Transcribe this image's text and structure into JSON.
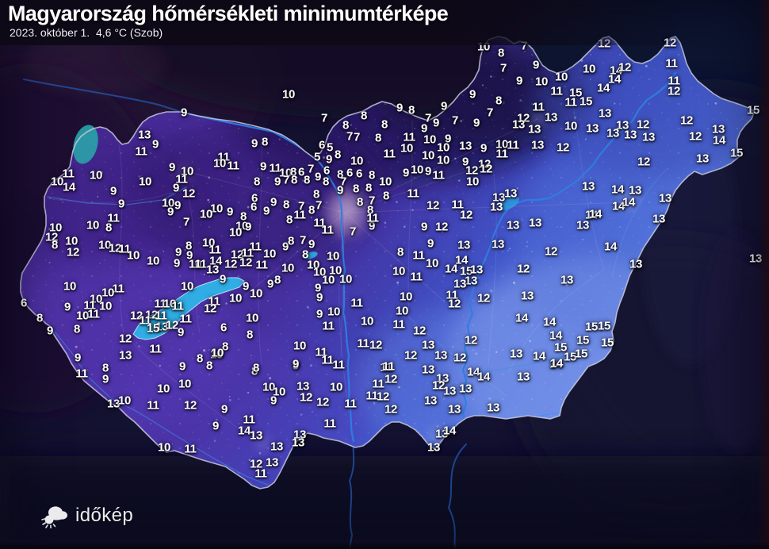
{
  "header": {
    "title": "Magyarország hőmérsékleti minimumtérképe",
    "subtitle": "2023. október 1.  4,6 °C (Szob)"
  },
  "branding": {
    "logo_text": "időkép",
    "logo_icon": "sun-cloud-icon"
  },
  "map": {
    "unit": "°C",
    "colors": {
      "label": "#ffffff",
      "title_bar": "#0d0916",
      "background": "#151233",
      "land_west": "#45298f",
      "land_mid": "#4140b2",
      "land_east": "#5d7ede",
      "land_se_bright": "#87a4f0",
      "north_dark": "#190b40",
      "lake": "#2eb4e8",
      "river": "#2f7de0",
      "border": "#c7c9de"
    }
  },
  "stations": [
    [
      232,
      142,
      9
    ],
    [
      182,
      170,
      13
    ],
    [
      196,
      182,
      9
    ],
    [
      178,
      191,
      11
    ],
    [
      217,
      211,
      9
    ],
    [
      236,
      216,
      10
    ],
    [
      229,
      226,
      11
    ],
    [
      222,
      237,
      9
    ],
    [
      238,
      244,
      12
    ],
    [
      86,
      219,
      11
    ],
    [
      72,
      229,
      10
    ],
    [
      87,
      236,
      14
    ],
    [
      121,
      221,
      10
    ],
    [
      183,
      229,
      10
    ],
    [
      143,
      241,
      9
    ],
    [
      153,
      257,
      9
    ],
    [
      212,
      256,
      10
    ],
    [
      224,
      259,
      9
    ],
    [
      215,
      267,
      9
    ],
    [
      235,
      280,
      7
    ],
    [
      143,
      275,
      11
    ],
    [
      117,
      284,
      10
    ],
    [
      137,
      287,
      8
    ],
    [
      70,
      287,
      10
    ],
    [
      65,
      299,
      12
    ],
    [
      69,
      309,
      8
    ],
    [
      90,
      304,
      10
    ],
    [
      92,
      318,
      12
    ],
    [
      132,
      309,
      10
    ],
    [
      145,
      313,
      12
    ],
    [
      157,
      314,
      11
    ],
    [
      168,
      322,
      10
    ],
    [
      193,
      329,
      10
    ],
    [
      225,
      318,
      9
    ],
    [
      238,
      310,
      8
    ],
    [
      239,
      322,
      9
    ],
    [
      223,
      332,
      9
    ],
    [
      246,
      333,
      10
    ],
    [
      88,
      361,
      10
    ],
    [
      149,
      364,
      11
    ],
    [
      136,
      369,
      10
    ],
    [
      121,
      377,
      10
    ],
    [
      236,
      361,
      10
    ],
    [
      30,
      382,
      6
    ],
    [
      85,
      387,
      9
    ],
    [
      113,
      385,
      11
    ],
    [
      133,
      386,
      10
    ],
    [
      50,
      401,
      8
    ],
    [
      104,
      398,
      10
    ],
    [
      118,
      396,
      11
    ],
    [
      63,
      417,
      9
    ],
    [
      97,
      415,
      8
    ],
    [
      98,
      451,
      9
    ],
    [
      202,
      383,
      11
    ],
    [
      214,
      383,
      10
    ],
    [
      224,
      386,
      11
    ],
    [
      172,
      398,
      12
    ],
    [
      191,
      397,
      12
    ],
    [
      203,
      398,
      11
    ],
    [
      183,
      404,
      11
    ],
    [
      204,
      412,
      13
    ],
    [
      217,
      410,
      12
    ],
    [
      234,
      402,
      11
    ],
    [
      193,
      414,
      15
    ],
    [
      228,
      419,
      9
    ],
    [
      158,
      427,
      12
    ],
    [
      196,
      440,
      11
    ],
    [
      158,
      448,
      13
    ],
    [
      103,
      471,
      11
    ],
    [
      133,
      464,
      8
    ],
    [
      133,
      478,
      9
    ],
    [
      230,
      462,
      9
    ],
    [
      206,
      490,
      10
    ],
    [
      233,
      484,
      10
    ],
    [
      143,
      509,
      13
    ],
    [
      157,
      505,
      10
    ],
    [
      193,
      511,
      11
    ],
    [
      240,
      511,
      12
    ],
    [
      207,
      564,
      10
    ],
    [
      240,
      566,
      11
    ],
    [
      273,
      447,
      10
    ],
    [
      252,
      452,
      8
    ],
    [
      264,
      461,
      8
    ],
    [
      321,
      468,
      8
    ],
    [
      373,
      461,
      9
    ],
    [
      339,
      488,
      10
    ],
    [
      352,
      494,
      10
    ],
    [
      345,
      505,
      9
    ],
    [
      382,
      487,
      13
    ],
    [
      386,
      501,
      12
    ],
    [
      407,
      507,
      12
    ],
    [
      424,
      488,
      10
    ],
    [
      442,
      509,
      11
    ],
    [
      487,
      463,
      11
    ],
    [
      477,
      484,
      11
    ],
    [
      493,
      478,
      12
    ],
    [
      469,
      499,
      11
    ],
    [
      483,
      500,
      12
    ],
    [
      493,
      516,
      12
    ],
    [
      283,
      516,
      9
    ],
    [
      272,
      537,
      9
    ],
    [
      314,
      529,
      11
    ],
    [
      308,
      543,
      14
    ],
    [
      323,
      549,
      13
    ],
    [
      349,
      563,
      13
    ],
    [
      378,
      548,
      13
    ],
    [
      376,
      558,
      13
    ],
    [
      416,
      534,
      11
    ],
    [
      323,
      585,
      12
    ],
    [
      343,
      583,
      13
    ],
    [
      329,
      597,
      11
    ],
    [
      263,
      306,
      10
    ],
    [
      271,
      315,
      11
    ],
    [
      322,
      311,
      11
    ],
    [
      299,
      321,
      12
    ],
    [
      312,
      319,
      11
    ],
    [
      340,
      320,
      10
    ],
    [
      360,
      311,
      9
    ],
    [
      367,
      304,
      8
    ],
    [
      382,
      303,
      7
    ],
    [
      393,
      308,
      9
    ],
    [
      385,
      321,
      8
    ],
    [
      420,
      323,
      10
    ],
    [
      272,
      329,
      14
    ],
    [
      253,
      333,
      11
    ],
    [
      291,
      333,
      12
    ],
    [
      310,
      331,
      12
    ],
    [
      330,
      334,
      11
    ],
    [
      268,
      340,
      13
    ],
    [
      363,
      338,
      10
    ],
    [
      395,
      334,
      10
    ],
    [
      403,
      343,
      10
    ],
    [
      423,
      341,
      10
    ],
    [
      281,
      352,
      9
    ],
    [
      414,
      353,
      10
    ],
    [
      436,
      352,
      10
    ],
    [
      310,
      361,
      9
    ],
    [
      341,
      358,
      9
    ],
    [
      350,
      353,
      8
    ],
    [
      401,
      363,
      9
    ],
    [
      323,
      370,
      10
    ],
    [
      297,
      376,
      10
    ],
    [
      403,
      375,
      9
    ],
    [
      270,
      380,
      11
    ],
    [
      265,
      389,
      12
    ],
    [
      450,
      382,
      11
    ],
    [
      403,
      396,
      9
    ],
    [
      421,
      393,
      10
    ],
    [
      414,
      411,
      11
    ],
    [
      463,
      405,
      10
    ],
    [
      318,
      401,
      10
    ],
    [
      282,
      413,
      6
    ],
    [
      315,
      422,
      8
    ],
    [
      284,
      437,
      8
    ],
    [
      274,
      445,
      10
    ],
    [
      378,
      436,
      10
    ],
    [
      405,
      444,
      11
    ],
    [
      413,
      454,
      11
    ],
    [
      427,
      460,
      11
    ],
    [
      373,
      459,
      9
    ],
    [
      458,
      433,
      11
    ],
    [
      474,
      435,
      12
    ],
    [
      490,
      462,
      11
    ],
    [
      323,
      464,
      8
    ],
    [
      364,
      119,
      10
    ],
    [
      409,
      149,
      7
    ],
    [
      459,
      146,
      8
    ],
    [
      436,
      158,
      8
    ],
    [
      485,
      157,
      8
    ],
    [
      441,
      172,
      7
    ],
    [
      450,
      173,
      7
    ],
    [
      477,
      174,
      8
    ],
    [
      321,
      181,
      9
    ],
    [
      334,
      179,
      8
    ],
    [
      406,
      183,
      6
    ],
    [
      416,
      186,
      5
    ],
    [
      400,
      198,
      5
    ],
    [
      415,
      201,
      9
    ],
    [
      426,
      195,
      8
    ],
    [
      282,
      198,
      11
    ],
    [
      277,
      206,
      10
    ],
    [
      294,
      209,
      11
    ],
    [
      450,
      203,
      10
    ],
    [
      491,
      194,
      11
    ],
    [
      332,
      210,
      9
    ],
    [
      347,
      212,
      11
    ],
    [
      360,
      218,
      10
    ],
    [
      370,
      217,
      8
    ],
    [
      380,
      217,
      6
    ],
    [
      392,
      213,
      7
    ],
    [
      412,
      215,
      6
    ],
    [
      429,
      220,
      8
    ],
    [
      441,
      218,
      6
    ],
    [
      453,
      219,
      6
    ],
    [
      469,
      221,
      8
    ],
    [
      350,
      229,
      9
    ],
    [
      361,
      227,
      7
    ],
    [
      371,
      227,
      8
    ],
    [
      387,
      227,
      8
    ],
    [
      401,
      223,
      9
    ],
    [
      411,
      229,
      8
    ],
    [
      324,
      229,
      8
    ],
    [
      433,
      229,
      7
    ],
    [
      486,
      229,
      10
    ],
    [
      429,
      240,
      9
    ],
    [
      449,
      238,
      8
    ],
    [
      465,
      237,
      8
    ],
    [
      399,
      245,
      8
    ],
    [
      321,
      250,
      6
    ],
    [
      320,
      261,
      6
    ],
    [
      345,
      255,
      9
    ],
    [
      361,
      258,
      8
    ],
    [
      380,
      260,
      7
    ],
    [
      393,
      265,
      8
    ],
    [
      402,
      259,
      7
    ],
    [
      454,
      255,
      8
    ],
    [
      469,
      253,
      7
    ],
    [
      487,
      247,
      8
    ],
    [
      336,
      266,
      9
    ],
    [
      290,
      267,
      9
    ],
    [
      273,
      263,
      10
    ],
    [
      260,
      270,
      10
    ],
    [
      307,
      273,
      8
    ],
    [
      378,
      271,
      11
    ],
    [
      365,
      277,
      8
    ],
    [
      403,
      281,
      11
    ],
    [
      413,
      290,
      11
    ],
    [
      305,
      285,
      10
    ],
    [
      313,
      286,
      9
    ],
    [
      469,
      285,
      9
    ],
    [
      445,
      292,
      7
    ],
    [
      467,
      265,
      8
    ],
    [
      470,
      275,
      11
    ],
    [
      297,
      293,
      10
    ],
    [
      610,
      59,
      10
    ],
    [
      632,
      67,
      8
    ],
    [
      661,
      58,
      7
    ],
    [
      635,
      86,
      7
    ],
    [
      676,
      82,
      9
    ],
    [
      655,
      102,
      9
    ],
    [
      683,
      103,
      10
    ],
    [
      708,
      97,
      10
    ],
    [
      743,
      87,
      10
    ],
    [
      702,
      115,
      11
    ],
    [
      726,
      117,
      15
    ],
    [
      720,
      129,
      11
    ],
    [
      739,
      128,
      15
    ],
    [
      596,
      119,
      9
    ],
    [
      560,
      134,
      9
    ],
    [
      504,
      136,
      9
    ],
    [
      519,
      139,
      8
    ],
    [
      540,
      149,
      7
    ],
    [
      550,
      155,
      9
    ],
    [
      535,
      162,
      9
    ],
    [
      574,
      152,
      7
    ],
    [
      618,
      142,
      7
    ],
    [
      629,
      127,
      8
    ],
    [
      601,
      155,
      9
    ],
    [
      679,
      135,
      11
    ],
    [
      695,
      148,
      13
    ],
    [
      660,
      149,
      12
    ],
    [
      654,
      157,
      13
    ],
    [
      674,
      163,
      13
    ],
    [
      720,
      159,
      10
    ],
    [
      747,
      162,
      13
    ],
    [
      516,
      173,
      11
    ],
    [
      513,
      187,
      10
    ],
    [
      542,
      176,
      10
    ],
    [
      565,
      175,
      9
    ],
    [
      559,
      186,
      10
    ],
    [
      587,
      184,
      13
    ],
    [
      610,
      187,
      9
    ],
    [
      633,
      182,
      10
    ],
    [
      647,
      183,
      11
    ],
    [
      540,
      196,
      10
    ],
    [
      559,
      202,
      10
    ],
    [
      587,
      204,
      9
    ],
    [
      678,
      183,
      13
    ],
    [
      710,
      186,
      12
    ],
    [
      633,
      194,
      11
    ],
    [
      611,
      207,
      12
    ],
    [
      762,
      55,
      12
    ],
    [
      845,
      54,
      12
    ],
    [
      847,
      80,
      11
    ],
    [
      777,
      89,
      14
    ],
    [
      788,
      85,
      12
    ],
    [
      775,
      100,
      14
    ],
    [
      761,
      111,
      14
    ],
    [
      850,
      102,
      11
    ],
    [
      850,
      115,
      12
    ],
    [
      763,
      143,
      13
    ],
    [
      950,
      139,
      15
    ],
    [
      785,
      158,
      13
    ],
    [
      811,
      157,
      12
    ],
    [
      773,
      168,
      13
    ],
    [
      795,
      170,
      13
    ],
    [
      818,
      173,
      13
    ],
    [
      866,
      152,
      12
    ],
    [
      877,
      172,
      12
    ],
    [
      906,
      163,
      13
    ],
    [
      907,
      177,
      14
    ],
    [
      929,
      193,
      15
    ],
    [
      886,
      200,
      13
    ],
    [
      812,
      204,
      12
    ],
    [
      512,
      218,
      9
    ],
    [
      526,
      214,
      10
    ],
    [
      540,
      216,
      9
    ],
    [
      553,
      221,
      11
    ],
    [
      595,
      215,
      12
    ],
    [
      613,
      213,
      12
    ],
    [
      596,
      229,
      10
    ],
    [
      521,
      244,
      11
    ],
    [
      546,
      259,
      12
    ],
    [
      577,
      258,
      11
    ],
    [
      588,
      271,
      12
    ],
    [
      629,
      249,
      13
    ],
    [
      644,
      244,
      13
    ],
    [
      626,
      261,
      13
    ],
    [
      742,
      235,
      13
    ],
    [
      535,
      286,
      9
    ],
    [
      557,
      286,
      12
    ],
    [
      647,
      284,
      13
    ],
    [
      675,
      281,
      13
    ],
    [
      735,
      284,
      13
    ],
    [
      746,
      271,
      14
    ],
    [
      543,
      307,
      9
    ],
    [
      585,
      309,
      13
    ],
    [
      628,
      308,
      13
    ],
    [
      505,
      318,
      8
    ],
    [
      528,
      322,
      11
    ],
    [
      545,
      332,
      10
    ],
    [
      582,
      328,
      14
    ],
    [
      569,
      339,
      14
    ],
    [
      588,
      342,
      15
    ],
    [
      601,
      340,
      13
    ],
    [
      594,
      354,
      13
    ],
    [
      580,
      358,
      13
    ],
    [
      695,
      317,
      12
    ],
    [
      660,
      339,
      12
    ],
    [
      715,
      353,
      13
    ],
    [
      503,
      342,
      10
    ],
    [
      525,
      349,
      11
    ],
    [
      570,
      372,
      11
    ],
    [
      610,
      376,
      12
    ],
    [
      665,
      373,
      13
    ],
    [
      512,
      374,
      10
    ],
    [
      573,
      383,
      12
    ],
    [
      779,
      239,
      14
    ],
    [
      801,
      240,
      13
    ],
    [
      839,
      250,
      13
    ],
    [
      780,
      260,
      14
    ],
    [
      793,
      255,
      14
    ],
    [
      751,
      270,
      14
    ],
    [
      831,
      276,
      13
    ],
    [
      770,
      311,
      14
    ],
    [
      802,
      333,
      13
    ],
    [
      953,
      326,
      13
    ],
    [
      507,
      392,
      10
    ],
    [
      503,
      409,
      11
    ],
    [
      529,
      417,
      12
    ],
    [
      540,
      435,
      13
    ],
    [
      518,
      448,
      12
    ],
    [
      556,
      448,
      13
    ],
    [
      580,
      451,
      12
    ],
    [
      594,
      429,
      12
    ],
    [
      658,
      401,
      14
    ],
    [
      693,
      406,
      14
    ],
    [
      701,
      423,
      14
    ],
    [
      746,
      412,
      15
    ],
    [
      762,
      411,
      15
    ],
    [
      707,
      438,
      15
    ],
    [
      735,
      429,
      15
    ],
    [
      766,
      432,
      15
    ],
    [
      719,
      450,
      15
    ],
    [
      733,
      446,
      15
    ],
    [
      701,
      459,
      14
    ],
    [
      651,
      446,
      13
    ],
    [
      680,
      449,
      14
    ],
    [
      702,
      458,
      14
    ],
    [
      540,
      466,
      13
    ],
    [
      558,
      477,
      13
    ],
    [
      597,
      469,
      14
    ],
    [
      610,
      475,
      14
    ],
    [
      660,
      475,
      13
    ],
    [
      553,
      486,
      12
    ],
    [
      567,
      493,
      13
    ],
    [
      587,
      490,
      13
    ],
    [
      543,
      505,
      13
    ],
    [
      573,
      516,
      13
    ],
    [
      622,
      514,
      13
    ],
    [
      557,
      547,
      13
    ],
    [
      567,
      543,
      14
    ],
    [
      547,
      564,
      13
    ]
  ]
}
